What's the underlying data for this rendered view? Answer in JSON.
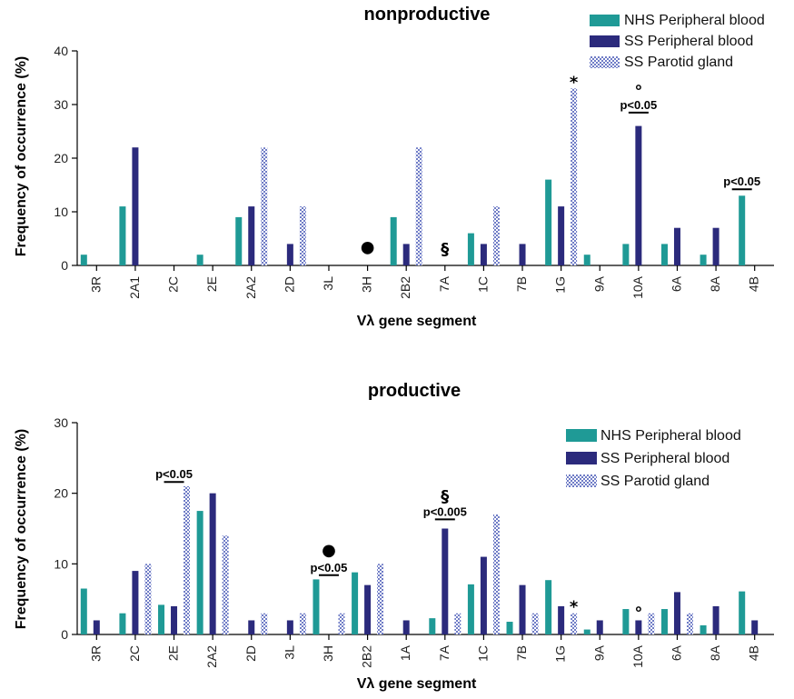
{
  "chart_data": [
    {
      "type": "bar",
      "title": "nonproductive",
      "xlabel": "Vλ gene segment",
      "ylabel": "Frequency of occurrence (%)",
      "ylim": [
        0,
        40
      ],
      "yticks": [
        0,
        10,
        20,
        30,
        40
      ],
      "categories": [
        "3R",
        "2A1",
        "2C",
        "2E",
        "2A2",
        "2D",
        "3L",
        "3H",
        "2B2",
        "7A",
        "1C",
        "7B",
        "1G",
        "9A",
        "10A",
        "6A",
        "8A",
        "4B"
      ],
      "series": [
        {
          "name": "NHS Peripheral blood",
          "color": "#1f9a96",
          "pattern": "solid",
          "values": [
            2,
            11,
            0,
            2,
            9,
            0,
            0,
            0,
            9,
            0,
            6,
            0,
            16,
            2,
            4,
            4,
            2,
            13
          ]
        },
        {
          "name": "SS Peripheral blood",
          "color": "#2b2a7c",
          "pattern": "solid",
          "values": [
            0,
            22,
            0,
            0,
            11,
            4,
            0,
            0,
            4,
            0,
            4,
            4,
            11,
            0,
            26,
            7,
            7,
            0
          ]
        },
        {
          "name": "SS Parotid gland",
          "color": "#6f7cc6",
          "pattern": "checker",
          "values": [
            0,
            0,
            0,
            0,
            22,
            11,
            0,
            0,
            22,
            0,
            11,
            0,
            33,
            0,
            0,
            0,
            0,
            0
          ]
        }
      ],
      "legend_position": "top-right",
      "annotations": [
        {
          "category": "1G",
          "series": 2,
          "text": "*",
          "kind": "symbol"
        },
        {
          "category": "10A",
          "series": 1,
          "text": "°",
          "kind": "symbol"
        },
        {
          "category": "10A",
          "series": 1,
          "text": "p<0.05",
          "kind": "pvalue",
          "level": 28.5
        },
        {
          "category": "4B",
          "series": 0,
          "text": "p<0.05",
          "kind": "pvalue",
          "level": 14.2
        },
        {
          "category": "3H",
          "series": 1,
          "text": "●",
          "kind": "symbol",
          "level": 2.5
        },
        {
          "category": "7A",
          "series": 1,
          "text": "§",
          "kind": "symbol",
          "level": 2
        }
      ]
    },
    {
      "type": "bar",
      "title": "productive",
      "xlabel": "Vλ gene segment",
      "ylabel": "Frequency of occurrence (%)",
      "ylim": [
        0,
        30
      ],
      "yticks": [
        0,
        10,
        20,
        30
      ],
      "categories": [
        "3R",
        "2C",
        "2E",
        "2A2",
        "2D",
        "3L",
        "3H",
        "2B2",
        "1A",
        "7A",
        "1C",
        "7B",
        "1G",
        "9A",
        "10A",
        "6A",
        "8A",
        "4B"
      ],
      "series": [
        {
          "name": "NHS Peripheral blood",
          "color": "#1f9a96",
          "pattern": "solid",
          "values": [
            6.5,
            3,
            4.2,
            17.5,
            0,
            0,
            7.8,
            8.8,
            0,
            2.3,
            7.1,
            1.8,
            7.7,
            0.7,
            3.6,
            3.6,
            1.3,
            6.1
          ]
        },
        {
          "name": "SS Peripheral blood",
          "color": "#2b2a7c",
          "pattern": "solid",
          "values": [
            2,
            9,
            4,
            20,
            2,
            2,
            0,
            7,
            2,
            15,
            11,
            7,
            4,
            2,
            2,
            6,
            4,
            2
          ]
        },
        {
          "name": "SS Parotid gland",
          "color": "#6f7cc6",
          "pattern": "checker",
          "values": [
            0,
            10,
            21,
            14,
            3,
            3,
            3,
            10,
            0,
            3,
            17,
            3,
            3,
            0,
            3,
            3,
            0,
            0
          ]
        }
      ],
      "legend_position": "top-right",
      "annotations": [
        {
          "category": "2E",
          "series": 1,
          "text": "p<0.05",
          "kind": "pvalue",
          "level": 21.6
        },
        {
          "category": "3H",
          "series": 1,
          "text": "p<0.05",
          "kind": "pvalue",
          "level": 8.4
        },
        {
          "category": "3H",
          "series": 1,
          "text": "●",
          "kind": "symbol",
          "level": 11.2
        },
        {
          "category": "7A",
          "series": 1,
          "text": "p<0.005",
          "kind": "pvalue",
          "level": 16.3
        },
        {
          "category": "7A",
          "series": 1,
          "text": "§",
          "kind": "symbol",
          "level": 18.8
        },
        {
          "category": "1G",
          "series": 2,
          "text": "*",
          "kind": "symbol"
        },
        {
          "category": "10A",
          "series": 1,
          "text": "°",
          "kind": "symbol"
        }
      ]
    }
  ]
}
